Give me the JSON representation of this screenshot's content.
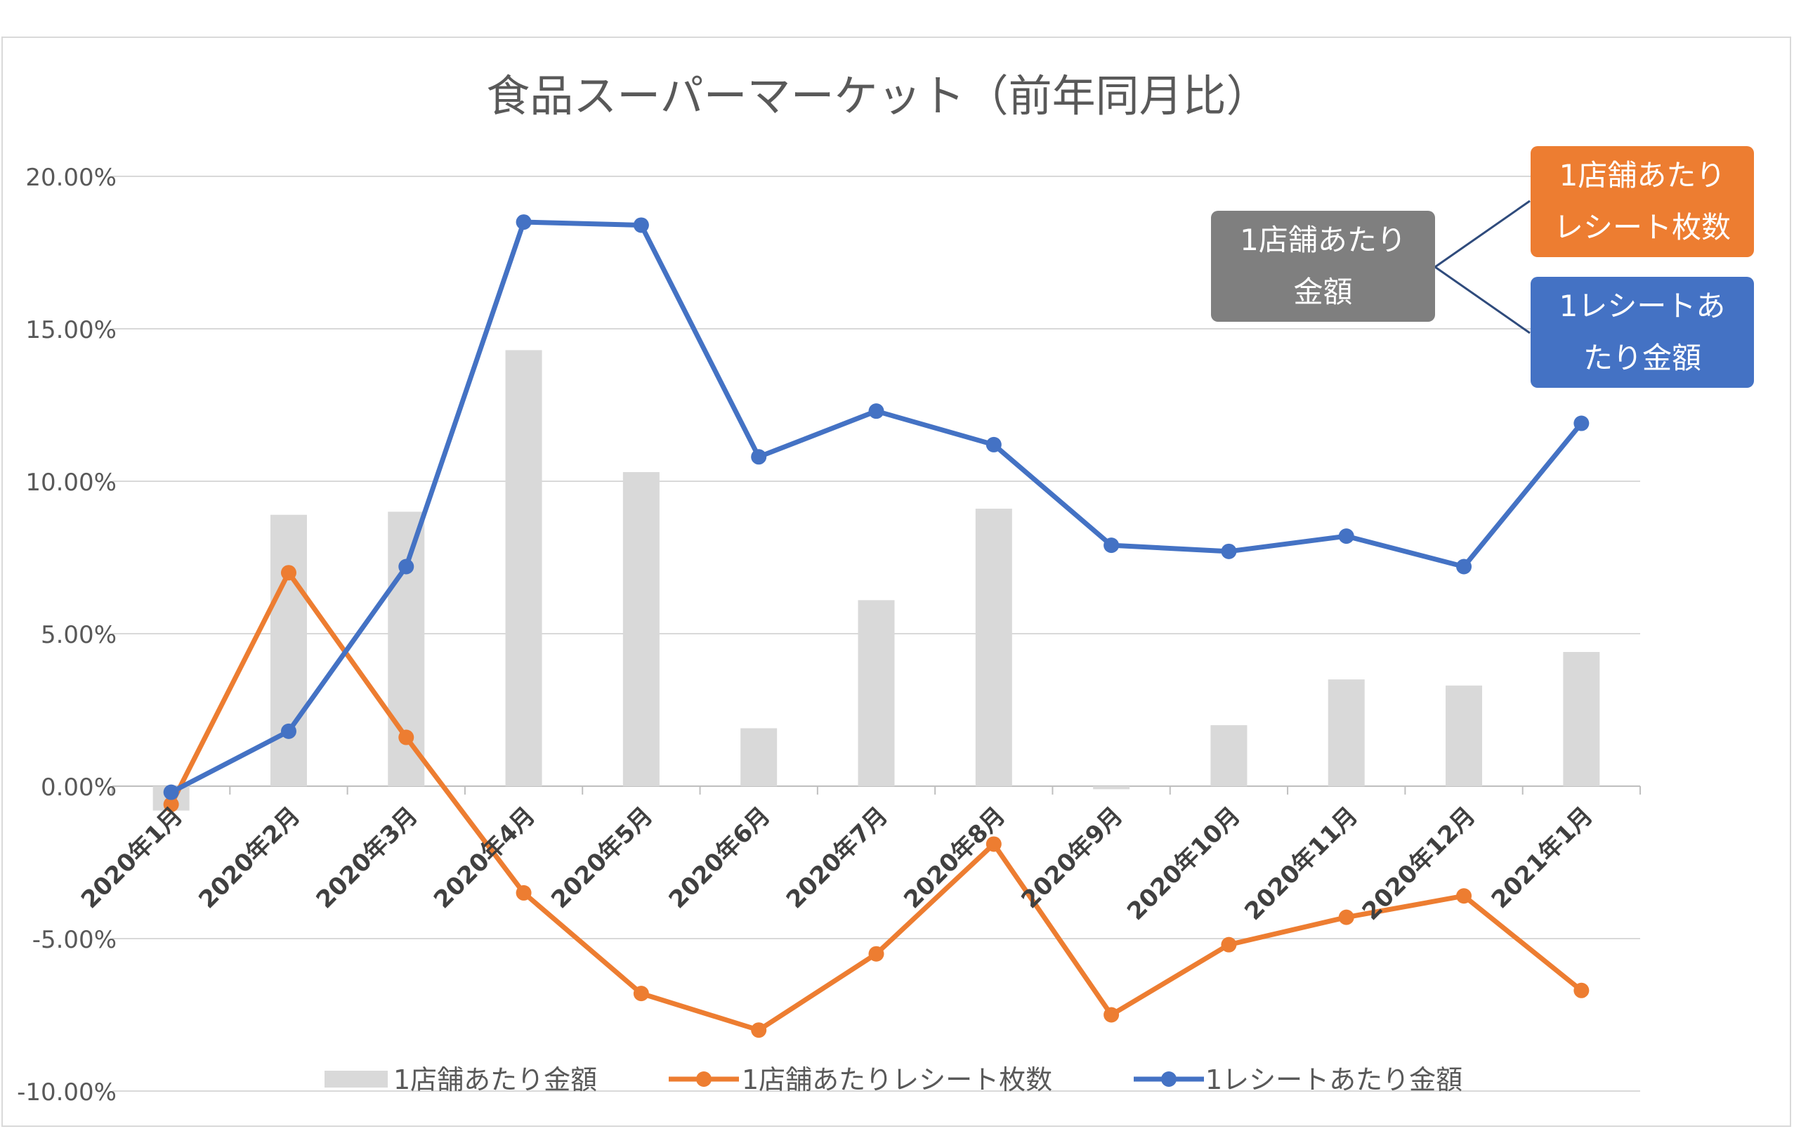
{
  "chart_data": {
    "type": "bar+line",
    "title": "食品スーパーマーケット（前年同月比）",
    "categories": [
      "2020年1月",
      "2020年2月",
      "2020年3月",
      "2020年4月",
      "2020年5月",
      "2020年6月",
      "2020年7月",
      "2020年8月",
      "2020年9月",
      "2020年10月",
      "2020年11月",
      "2020年12月",
      "2021年1月"
    ],
    "ylim": [
      -10,
      20
    ],
    "yticks": [
      "20.00%",
      "15.00%",
      "10.00%",
      "5.00%",
      "0.00%",
      "-5.00%",
      "-10.00%"
    ],
    "ytick_values": [
      20,
      15,
      10,
      5,
      0,
      -5,
      -10
    ],
    "grid": true,
    "legend_position": "bottom",
    "series": [
      {
        "name": "1店舗あたり金額",
        "kind": "bar",
        "color": "#d9d9d9",
        "values": [
          -0.8,
          8.9,
          9.0,
          14.3,
          10.3,
          1.9,
          6.1,
          9.1,
          -0.1,
          2.0,
          3.5,
          3.3,
          4.4
        ]
      },
      {
        "name": "1店舗あたりレシート枚数",
        "kind": "line",
        "color": "#ed7d31",
        "values": [
          -0.6,
          7.0,
          1.6,
          -3.5,
          -6.8,
          -8.0,
          -5.5,
          -1.9,
          -7.5,
          -5.2,
          -4.3,
          -3.6,
          -6.7
        ]
      },
      {
        "name": "1レシートあたり金額",
        "kind": "line",
        "color": "#4472c4",
        "values": [
          -0.2,
          1.8,
          7.2,
          18.5,
          18.4,
          10.8,
          12.3,
          11.2,
          7.9,
          7.7,
          8.2,
          7.2,
          11.9
        ]
      }
    ]
  },
  "callouts": {
    "store_amount": [
      "1店舗あたり",
      "金額"
    ],
    "receipts_per_store": [
      "1店舗あたり",
      "レシート枚数"
    ],
    "amount_per_receipt": [
      "1レシートあ",
      "たり金額"
    ]
  },
  "colors": {
    "gray_box": "#7f7f7f",
    "orange_box": "#ed7d31",
    "blue_box": "#4472c4",
    "connector": "#2f4b7c"
  }
}
